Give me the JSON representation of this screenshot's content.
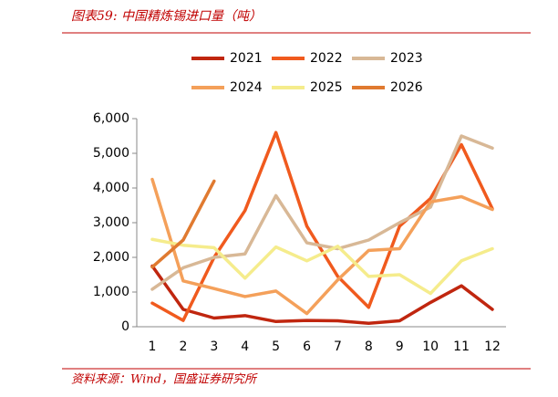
{
  "chart_data": {
    "type": "line",
    "title": "图表59:  中国精炼锡进口量（吨）",
    "source": "资料来源：Wind，国盛证券研究所",
    "categories": [
      "1",
      "2",
      "3",
      "4",
      "5",
      "6",
      "7",
      "8",
      "9",
      "10",
      "11",
      "12"
    ],
    "series": [
      {
        "name": "2021",
        "color": "#c0260f",
        "values": [
          1750,
          500,
          250,
          320,
          150,
          180,
          170,
          100,
          170,
          700,
          1180,
          500
        ]
      },
      {
        "name": "2022",
        "color": "#f05a1e",
        "values": [
          680,
          180,
          2000,
          3350,
          5600,
          2900,
          1450,
          560,
          2900,
          3700,
          5250,
          3400
        ]
      },
      {
        "name": "2023",
        "color": "#d8b896",
        "values": [
          1080,
          1700,
          2000,
          2100,
          3780,
          2420,
          2250,
          2500,
          3000,
          3450,
          5500,
          5150
        ]
      },
      {
        "name": "2024",
        "color": "#f4a05a",
        "values": [
          4250,
          1320,
          1100,
          870,
          1030,
          380,
          1350,
          2200,
          2250,
          3600,
          3750,
          3380
        ]
      },
      {
        "name": "2025",
        "color": "#f5ec8c",
        "values": [
          2520,
          2350,
          2280,
          1400,
          2300,
          1900,
          2320,
          1450,
          1500,
          960,
          1900,
          2250
        ]
      },
      {
        "name": "2026",
        "color": "#e07a30",
        "values": [
          1720,
          2500,
          4200,
          null,
          null,
          null,
          null,
          null,
          null,
          null,
          null,
          null
        ]
      }
    ],
    "ylim": [
      0,
      6000
    ],
    "yticks": [
      0,
      {
        "value": 1000,
        "label": "1,000"
      },
      {
        "value": 2000,
        "label": "2,000"
      },
      {
        "value": 3000,
        "label": "3,000"
      },
      {
        "value": 4000,
        "label": "4,000"
      },
      {
        "value": 5000,
        "label": "5,000"
      },
      {
        "value": 6000,
        "label": "6,000"
      }
    ],
    "grid": false
  }
}
